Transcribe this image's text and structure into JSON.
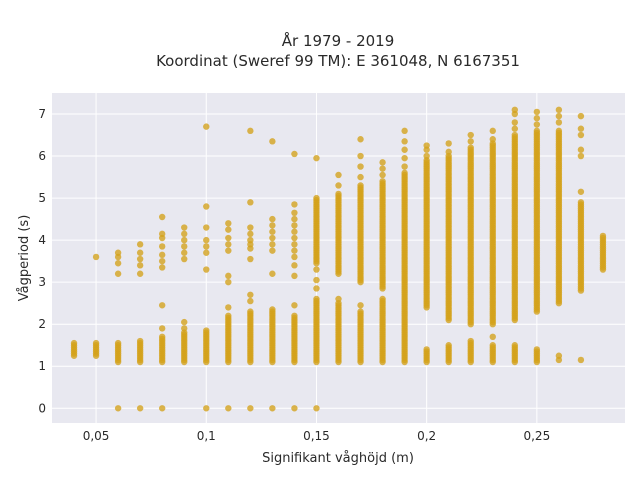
{
  "chart_data": {
    "type": "scatter",
    "title_lines": [
      "År 1979 - 2019",
      "Koordinat (Sweref 99 TM): E 361048, N 6167351"
    ],
    "xlabel": "Signifikant våghöjd (m)",
    "ylabel": "Vågperiod (s)",
    "xlim": [
      0.03,
      0.29
    ],
    "ylim": [
      -0.35,
      7.5
    ],
    "x_ticks": [
      0.05,
      0.1,
      0.15,
      0.2,
      0.25
    ],
    "x_tick_labels": [
      "0,05",
      "0,1",
      "0,15",
      "0,2",
      "0,25"
    ],
    "y_ticks": [
      0,
      1,
      2,
      3,
      4,
      5,
      6,
      7
    ],
    "y_tick_labels": [
      "0",
      "1",
      "2",
      "3",
      "4",
      "5",
      "6",
      "7"
    ],
    "grid": true,
    "legend": "none",
    "marker_color": "#D4A21A",
    "plot_background": "#E8E8F0",
    "columns": [
      {
        "x": 0.04,
        "ranges": [
          [
            1.25,
            1.55
          ]
        ],
        "points": []
      },
      {
        "x": 0.05,
        "ranges": [
          [
            1.25,
            1.55
          ]
        ],
        "points": [
          3.6
        ]
      },
      {
        "x": 0.06,
        "ranges": [
          [
            1.1,
            1.55
          ]
        ],
        "points": [
          0,
          3.2,
          3.45,
          3.6,
          3.7
        ]
      },
      {
        "x": 0.07,
        "ranges": [
          [
            1.1,
            1.6
          ]
        ],
        "points": [
          0,
          3.2,
          3.4,
          3.55,
          3.7,
          3.9
        ]
      },
      {
        "x": 0.08,
        "ranges": [
          [
            1.1,
            1.7
          ]
        ],
        "points": [
          0,
          1.9,
          2.45,
          3.35,
          3.5,
          3.65,
          3.85,
          4.05,
          4.15,
          4.55
        ]
      },
      {
        "x": 0.09,
        "ranges": [
          [
            1.1,
            1.8
          ]
        ],
        "points": [
          1.9,
          2.05,
          3.55,
          3.7,
          3.85,
          4.0,
          4.15,
          4.3
        ]
      },
      {
        "x": 0.1,
        "ranges": [
          [
            1.1,
            1.85
          ]
        ],
        "points": [
          0,
          3.3,
          3.7,
          3.85,
          4.0,
          4.3,
          4.8,
          6.7
        ]
      },
      {
        "x": 0.11,
        "ranges": [
          [
            1.1,
            2.2
          ]
        ],
        "points": [
          0,
          2.4,
          3.0,
          3.15,
          3.75,
          3.9,
          4.05,
          4.25,
          4.4
        ]
      },
      {
        "x": 0.12,
        "ranges": [
          [
            1.1,
            2.3
          ]
        ],
        "points": [
          0,
          2.55,
          2.7,
          3.55,
          3.8,
          3.9,
          4.0,
          4.15,
          4.3,
          4.9,
          6.6
        ]
      },
      {
        "x": 0.13,
        "ranges": [
          [
            1.1,
            2.35
          ]
        ],
        "points": [
          0,
          3.2,
          3.75,
          3.9,
          4.05,
          4.2,
          4.35,
          4.5,
          6.35
        ]
      },
      {
        "x": 0.14,
        "ranges": [
          [
            1.1,
            2.2
          ]
        ],
        "points": [
          0,
          2.45,
          3.15,
          3.4,
          3.6,
          3.75,
          3.9,
          4.05,
          4.2,
          4.35,
          4.5,
          4.65,
          4.85,
          6.05
        ]
      },
      {
        "x": 0.15,
        "ranges": [
          [
            1.1,
            2.6
          ],
          [
            3.45,
            5.0
          ]
        ],
        "points": [
          0,
          2.85,
          3.05,
          3.3,
          5.95
        ]
      },
      {
        "x": 0.16,
        "ranges": [
          [
            1.1,
            2.5
          ],
          [
            3.2,
            5.1
          ]
        ],
        "points": [
          2.6,
          5.3,
          5.55
        ]
      },
      {
        "x": 0.17,
        "ranges": [
          [
            1.1,
            2.3
          ],
          [
            3.0,
            5.3
          ]
        ],
        "points": [
          2.45,
          5.5,
          5.75,
          6.0,
          6.4
        ]
      },
      {
        "x": 0.18,
        "ranges": [
          [
            1.1,
            2.6
          ],
          [
            2.85,
            5.4
          ]
        ],
        "points": [
          5.55,
          5.7,
          5.85
        ]
      },
      {
        "x": 0.19,
        "ranges": [
          [
            1.1,
            5.6
          ]
        ],
        "points": [
          5.75,
          5.95,
          6.15,
          6.35,
          6.6
        ]
      },
      {
        "x": 0.2,
        "ranges": [
          [
            1.1,
            1.4
          ],
          [
            2.4,
            5.9
          ]
        ],
        "points": [
          6.0,
          6.15,
          6.25
        ]
      },
      {
        "x": 0.21,
        "ranges": [
          [
            1.1,
            1.5
          ],
          [
            2.1,
            6.0
          ]
        ],
        "points": [
          6.1,
          6.3
        ]
      },
      {
        "x": 0.22,
        "ranges": [
          [
            1.1,
            1.6
          ],
          [
            2.0,
            6.2
          ]
        ],
        "points": [
          6.35,
          6.5
        ]
      },
      {
        "x": 0.23,
        "ranges": [
          [
            1.1,
            1.5
          ],
          [
            2.0,
            6.3
          ]
        ],
        "points": [
          1.7,
          6.4,
          6.6
        ]
      },
      {
        "x": 0.24,
        "ranges": [
          [
            1.1,
            1.5
          ],
          [
            2.1,
            6.5
          ]
        ],
        "points": [
          6.65,
          6.8,
          7.0,
          7.1
        ]
      },
      {
        "x": 0.25,
        "ranges": [
          [
            1.1,
            1.4
          ],
          [
            2.3,
            6.6
          ]
        ],
        "points": [
          6.75,
          6.9,
          7.05
        ]
      },
      {
        "x": 0.26,
        "ranges": [
          [
            2.5,
            6.6
          ]
        ],
        "points": [
          1.15,
          1.25,
          6.8,
          6.95,
          7.1
        ]
      },
      {
        "x": 0.27,
        "ranges": [
          [
            2.8,
            4.9
          ]
        ],
        "points": [
          1.15,
          5.15,
          6.0,
          6.15,
          6.5,
          6.65,
          6.95
        ]
      },
      {
        "x": 0.28,
        "ranges": [
          [
            3.3,
            4.1
          ]
        ],
        "points": []
      }
    ]
  }
}
